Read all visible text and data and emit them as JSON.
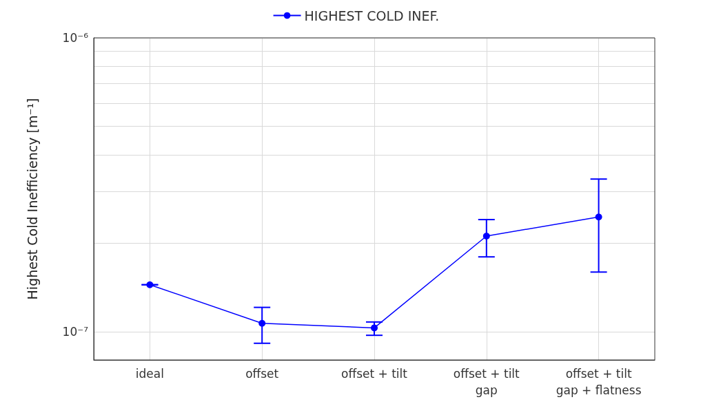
{
  "chart_data": {
    "type": "line",
    "categories": [
      "ideal",
      "offset",
      "offset + tilt",
      "offset + tilt\ngap",
      "offset + tilt\ngap + flatness"
    ],
    "ylabel": "Highest Cold Inefficiency [m⁻¹]",
    "series": [
      {
        "name": "HIGHEST COLD INEF.",
        "color": "#0000ff",
        "values": [
          1.447e-07,
          1.07e-07,
          1.032e-07,
          2.118e-07,
          2.46e-07
        ],
        "errors": [
          0,
          [
            9.15e-08,
            1.212e-07
          ],
          [
            9.74e-08,
            1.081e-07
          ],
          [
            1.8e-07,
            2.41e-07
          ],
          [
            1.598e-07,
            3.31e-07
          ]
        ]
      }
    ],
    "log": "y",
    "ylim": [
      8.03e-08,
      1e-06
    ],
    "yticks": [
      {
        "value": 1e-07,
        "label": "10⁻⁷"
      },
      {
        "value": 2e-07,
        "label": null
      },
      {
        "value": 3e-07,
        "label": null
      },
      {
        "value": 4e-07,
        "label": null
      },
      {
        "value": 5e-07,
        "label": null
      },
      {
        "value": 6e-07,
        "label": null
      },
      {
        "value": 7e-07,
        "label": null
      },
      {
        "value": 8e-07,
        "label": null
      },
      {
        "value": 9e-07,
        "label": null
      },
      {
        "value": 1e-06,
        "label": "10⁻⁶"
      }
    ],
    "grid": true,
    "legend": "top",
    "marker": "circle",
    "line_style": "solid"
  }
}
